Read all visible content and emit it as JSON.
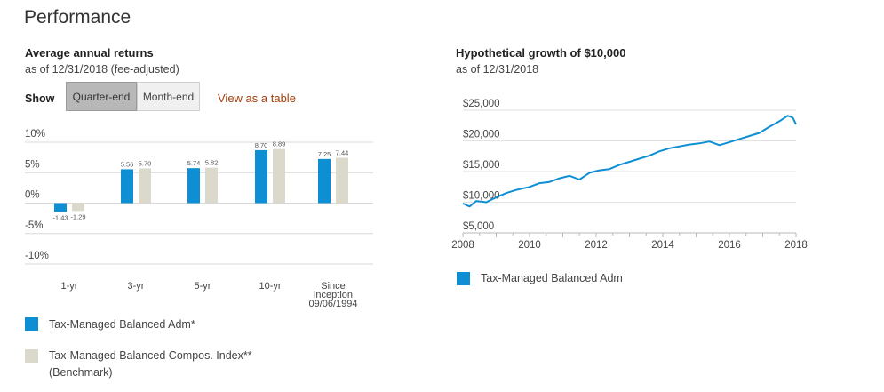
{
  "page_title": "Performance",
  "returns": {
    "heading": "Average annual returns",
    "asof": "as of 12/31/2018 (fee-adjusted)",
    "show_label": "Show",
    "toggle_active": "Quarter-end",
    "toggle_inactive": "Month-end",
    "view_table": "View as a table",
    "legend": [
      {
        "label": "Tax-Managed Balanced Adm*",
        "color": "#0f8fd3"
      },
      {
        "label": "Tax-Managed Balanced Compos. Index**",
        "label2": "(Benchmark)",
        "color": "#dbd8cc"
      }
    ]
  },
  "growth": {
    "heading": "Hypothetical growth of $10,000",
    "asof": "as of 12/31/2018",
    "legend": [
      {
        "label": "Tax-Managed Balanced Adm",
        "color": "#0f8fd3"
      }
    ]
  },
  "colors": {
    "fund": "#0f8fd3",
    "benchmark": "#dbd8cc",
    "grid": "#d8d8d8"
  },
  "chart_data": [
    {
      "type": "bar",
      "categories": [
        [
          "1-yr"
        ],
        [
          "3-yr"
        ],
        [
          "5-yr"
        ],
        [
          "10-yr"
        ],
        [
          "Since",
          "inception",
          "09/06/1994"
        ]
      ],
      "series": [
        {
          "name": "Tax-Managed Balanced Adm*",
          "values": [
            -1.43,
            5.56,
            5.74,
            8.7,
            7.25
          ]
        },
        {
          "name": "Tax-Managed Balanced Compos. Index**",
          "values": [
            -1.29,
            5.7,
            5.82,
            8.89,
            7.44
          ]
        }
      ],
      "yticks": [
        "10%",
        "5%",
        "0%",
        "-5%",
        "-10%"
      ],
      "ylim": [
        -10,
        10
      ],
      "grid": true
    },
    {
      "type": "line",
      "x_ticks": [
        "2008",
        "2010",
        "2012",
        "2014",
        "2016",
        "2018"
      ],
      "y_ticks": [
        "$25,000",
        "$20,000",
        "$15,000",
        "$10,000",
        "$5,000"
      ],
      "ylim": [
        5000,
        25000
      ],
      "xlim": [
        2008,
        2018
      ],
      "grid": true,
      "series": [
        {
          "name": "Tax-Managed Balanced Adm",
          "x": [
            2008.0,
            2008.2,
            2008.4,
            2008.7,
            2009.0,
            2009.3,
            2009.6,
            2010.0,
            2010.3,
            2010.6,
            2010.9,
            2011.2,
            2011.5,
            2011.8,
            2012.1,
            2012.4,
            2012.7,
            2013.0,
            2013.3,
            2013.6,
            2013.9,
            2014.2,
            2014.5,
            2014.8,
            2015.1,
            2015.4,
            2015.7,
            2016.0,
            2016.3,
            2016.6,
            2016.9,
            2017.2,
            2017.5,
            2017.75,
            2017.9,
            2018.0
          ],
          "y": [
            9800,
            9300,
            10200,
            10000,
            10800,
            11500,
            12000,
            12500,
            13100,
            13300,
            13900,
            14300,
            13700,
            14800,
            15200,
            15400,
            16100,
            16600,
            17100,
            17600,
            18300,
            18800,
            19100,
            19400,
            19600,
            19900,
            19300,
            19800,
            20300,
            20800,
            21300,
            22300,
            23200,
            24100,
            23800,
            22700
          ]
        }
      ]
    }
  ]
}
